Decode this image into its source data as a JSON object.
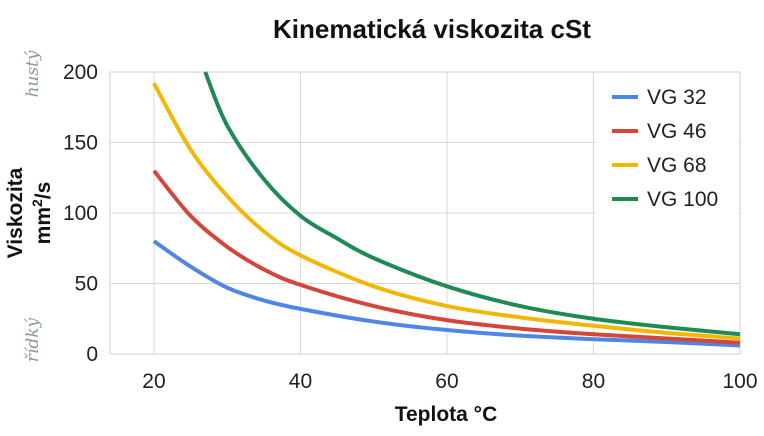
{
  "chart_data": {
    "type": "line",
    "title": "Kinematická viskozita cSt",
    "xlabel": "Teplota °C",
    "ylabel_line1": "Viskozita",
    "ylabel_line2_base": "mm",
    "ylabel_line2_sup": "2",
    "ylabel_line2_suffix": "/s",
    "xlim": [
      14,
      100
    ],
    "ylim": [
      0,
      200
    ],
    "xticks": [
      "20",
      "40",
      "60",
      "80",
      "100"
    ],
    "yticks": [
      "0",
      "50",
      "100",
      "150",
      "200"
    ],
    "grid": true,
    "legend_position": "top-right",
    "annotations": {
      "top": "hustý",
      "bottom": "řídký"
    },
    "series": [
      {
        "name": "VG 32",
        "color": "#4e86e4",
        "x": [
          20,
          25,
          30,
          35,
          40,
          50,
          60,
          70,
          80,
          90,
          100
        ],
        "y": [
          80,
          62,
          47,
          38,
          32,
          23,
          17,
          13,
          10.5,
          8.5,
          6
        ]
      },
      {
        "name": "VG 46",
        "color": "#d4463a",
        "x": [
          20,
          25,
          30,
          35,
          40,
          50,
          60,
          70,
          80,
          90,
          100
        ],
        "y": [
          130,
          98,
          76,
          60,
          49,
          34,
          24,
          18,
          14,
          11,
          8
        ]
      },
      {
        "name": "VG 68",
        "color": "#f2b705",
        "x": [
          20,
          25,
          30,
          35,
          40,
          50,
          60,
          70,
          80,
          90,
          100
        ],
        "y": [
          192,
          145,
          112,
          87,
          70,
          48,
          34,
          26,
          20,
          15,
          11
        ]
      },
      {
        "name": "VG 100",
        "color": "#1f8a53",
        "x": [
          27,
          30,
          35,
          40,
          45,
          50,
          60,
          70,
          80,
          90,
          100
        ],
        "y": [
          200,
          162,
          124,
          98,
          82,
          68,
          48,
          34,
          25,
          19,
          14
        ]
      }
    ]
  }
}
